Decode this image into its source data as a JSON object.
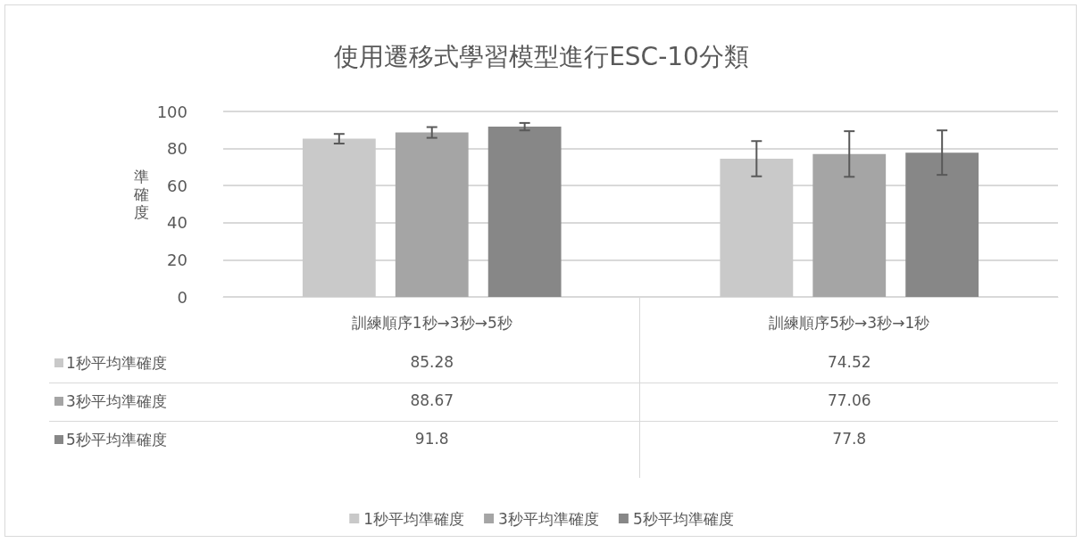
{
  "chart_data": {
    "type": "bar",
    "title": "使用遷移式學習模型進行ESC-10分類",
    "ylabel": "準確度",
    "categories": [
      "訓練順序1秒→3秒→5秒",
      "訓練順序5秒→3秒→1秒"
    ],
    "series": [
      {
        "name": "1秒平均準確度",
        "color": "#c9c9c9",
        "values": [
          85.28,
          74.52
        ],
        "errors": [
          2.6,
          9.5
        ]
      },
      {
        "name": "3秒平均準確度",
        "color": "#a5a5a5",
        "values": [
          88.67,
          77.06
        ],
        "errors": [
          2.9,
          12.3
        ]
      },
      {
        "name": "5秒平均準確度",
        "color": "#878787",
        "values": [
          91.8,
          77.8
        ],
        "errors": [
          2.0,
          12.0
        ]
      }
    ],
    "ylim": [
      0,
      100
    ],
    "yticks": [
      0,
      20,
      40,
      60,
      80,
      100
    ],
    "grid": "y",
    "legend": "bottom",
    "data_labels": true
  }
}
